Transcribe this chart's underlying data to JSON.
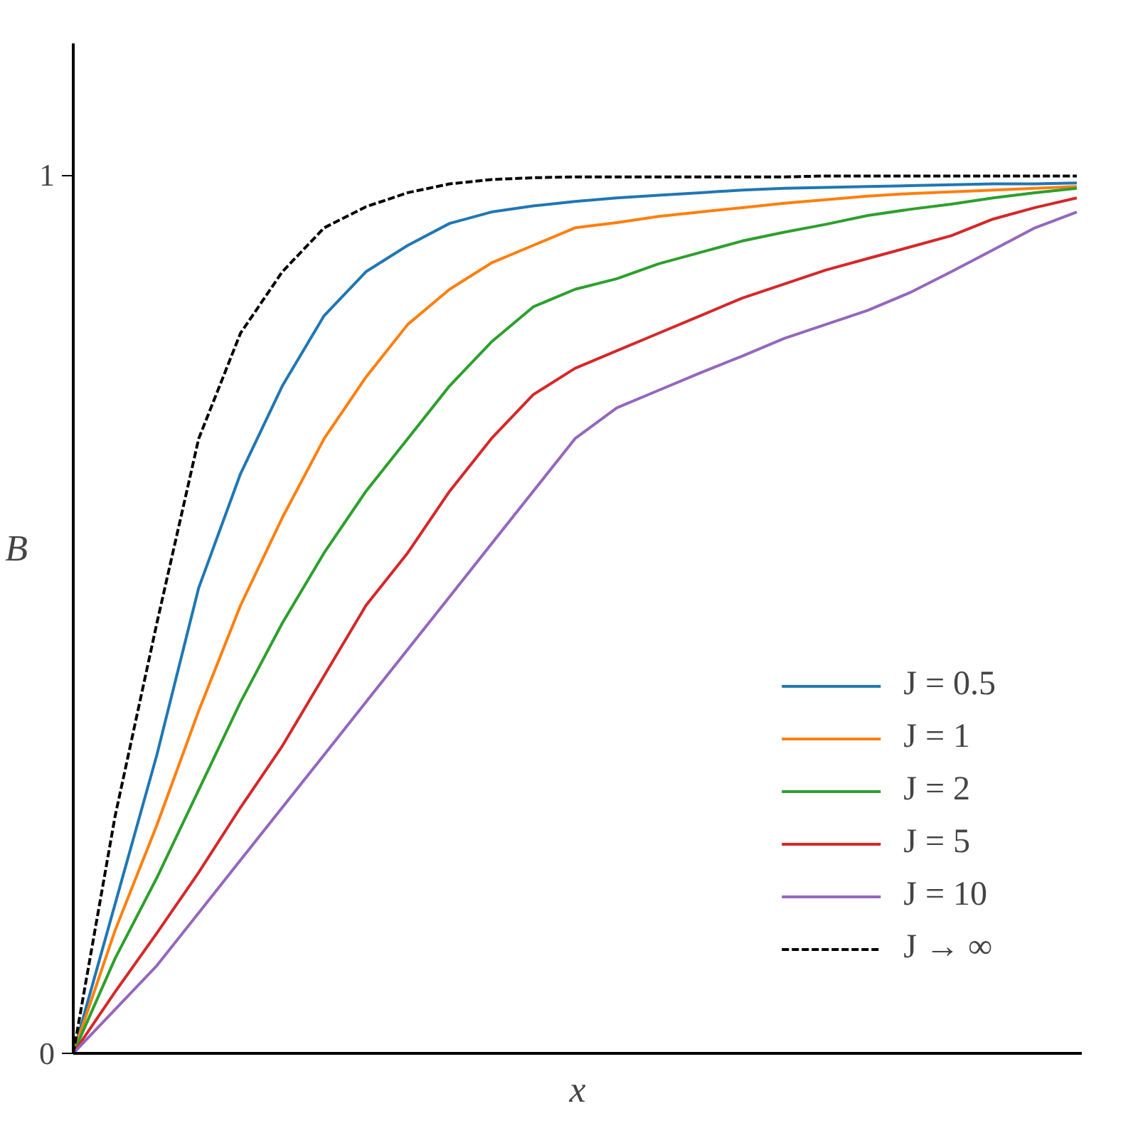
{
  "chart_data": {
    "type": "line",
    "xlabel": "x",
    "ylabel": "B",
    "categories": [
      null,
      null,
      null,
      null,
      null,
      null,
      null,
      null,
      null,
      null,
      null,
      null,
      null,
      null,
      null,
      null,
      null,
      null,
      null,
      null,
      null,
      null,
      null,
      null,
      null
    ],
    "ylim": [
      0,
      1.15
    ],
    "yticks": [
      0,
      1
    ],
    "tick_labels": "y",
    "grid": false,
    "legend": "bottom right",
    "marker": "none",
    "series": [
      {
        "name": "J = 0.5",
        "color": "#1f77b4",
        "values": [
          0,
          0.17,
          0.34,
          0.53,
          0.66,
          0.76,
          0.84,
          0.89,
          0.92,
          0.945,
          0.958,
          0.965,
          0.97,
          0.974,
          0.977,
          0.98,
          0.983,
          0.985,
          0.986,
          0.987,
          0.988,
          0.989,
          0.99,
          0.99,
          0.991
        ]
      },
      {
        "name": "J = 1",
        "color": "#ff7f0e",
        "values": [
          0,
          0.14,
          0.26,
          0.39,
          0.51,
          0.61,
          0.7,
          0.77,
          0.83,
          0.87,
          0.9,
          0.92,
          0.94,
          0.946,
          0.953,
          0.958,
          0.963,
          0.968,
          0.972,
          0.976,
          0.979,
          0.981,
          0.983,
          0.985,
          0.987
        ]
      },
      {
        "name": "J = 2",
        "color": "#2ca02c",
        "values": [
          0,
          0.108,
          0.2,
          0.3,
          0.4,
          0.49,
          0.57,
          0.64,
          0.7,
          0.76,
          0.81,
          0.85,
          0.87,
          0.882,
          0.899,
          0.912,
          0.925,
          0.935,
          0.944,
          0.954,
          0.961,
          0.967,
          0.974,
          0.98,
          0.985
        ]
      },
      {
        "name": "J = 5",
        "color": "#d62728",
        "values": [
          0,
          0.07,
          0.137,
          0.206,
          0.28,
          0.35,
          0.43,
          0.51,
          0.57,
          0.64,
          0.7,
          0.75,
          0.78,
          0.8,
          0.82,
          0.84,
          0.86,
          0.876,
          0.892,
          0.905,
          0.918,
          0.931,
          0.95,
          0.963,
          0.974
        ]
      },
      {
        "name": "J = 10",
        "color": "#9467bd",
        "values": [
          0,
          0.05,
          0.1,
          0.16,
          0.22,
          0.28,
          0.34,
          0.4,
          0.46,
          0.52,
          0.58,
          0.64,
          0.7,
          0.735,
          0.755,
          0.775,
          0.794,
          0.814,
          0.83,
          0.846,
          0.866,
          0.89,
          0.915,
          0.94,
          0.958
        ]
      },
      {
        "name": "J → ∞",
        "color": "#000000",
        "line_style": "dashed",
        "values": [
          0,
          0.27,
          0.49,
          0.7,
          0.82,
          0.89,
          0.94,
          0.964,
          0.98,
          0.99,
          0.995,
          0.997,
          0.998,
          0.998,
          0.998,
          0.998,
          0.998,
          0.998,
          0.999,
          0.999,
          0.999,
          0.999,
          0.999,
          0.999,
          0.999
        ]
      }
    ]
  }
}
